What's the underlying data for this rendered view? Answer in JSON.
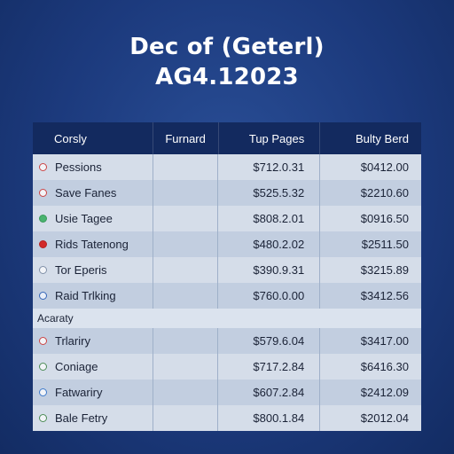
{
  "header": {
    "title_line1": "Dec of (Geterl)",
    "title_line2": "AG4.12023"
  },
  "table": {
    "columns": [
      "Corsly",
      "Furnard",
      "Tup Pages",
      "Bulty Berd"
    ],
    "rows_top": [
      {
        "label": "Pessions",
        "col2": "",
        "col3": "$712.0.31",
        "col4": "$0412.00",
        "icon": "circle-red-outline-icon"
      },
      {
        "label": "Save Fanes",
        "col2": "",
        "col3": "$525.5.32",
        "col4": "$2210.60",
        "icon": "circle-red-outline-icon"
      },
      {
        "label": "Usie Tagee",
        "col2": "",
        "col3": "$808.2.01",
        "col4": "$0916.50",
        "icon": "circle-green-icon"
      },
      {
        "label": "Rids Tatenong",
        "col2": "",
        "col3": "$480.2.02",
        "col4": "$2511.50",
        "icon": "circle-red-filled-icon"
      },
      {
        "label": "Tor Eperis",
        "col2": "",
        "col3": "$390.9.31",
        "col4": "$3215.89",
        "icon": "circle-outline-icon"
      },
      {
        "label": "Raid Trlking",
        "col2": "",
        "col3": "$760.0.00",
        "col4": "$3412.56",
        "icon": "pencil-icon"
      }
    ],
    "section_label": "Acaraty",
    "rows_bottom": [
      {
        "label": "Trlariry",
        "col2": "",
        "col3": "$579.6.04",
        "col4": "$3417.00",
        "icon": "circle-red-dot-icon"
      },
      {
        "label": "Coniage",
        "col2": "",
        "col3": "$717.2.84",
        "col4": "$6416.30",
        "icon": "circle-green-outline-icon"
      },
      {
        "label": "Fatwariry",
        "col2": "",
        "col3": "$607.2.84",
        "col4": "$2412.09",
        "icon": "circle-blue-check-icon"
      },
      {
        "label": "Bale Fetry",
        "col2": "",
        "col3": "$800.1.84",
        "col4": "$2012.04",
        "icon": "circle-green-outline-icon"
      }
    ]
  }
}
